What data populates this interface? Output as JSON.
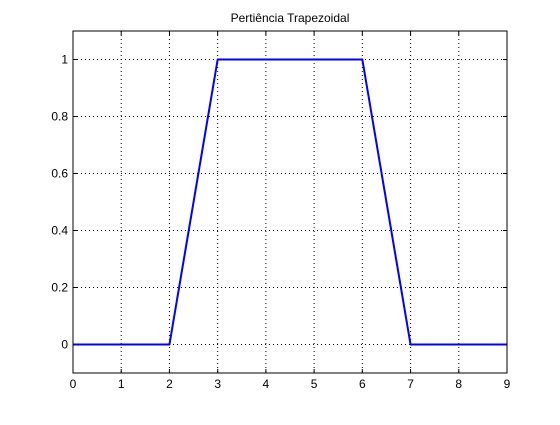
{
  "chart_data": {
    "type": "line",
    "title": "Pertiência Trapezoidal",
    "xlabel": "",
    "ylabel": "",
    "xlim": [
      0,
      9
    ],
    "ylim": [
      -0.1,
      1.1
    ],
    "x_ticks": [
      0,
      1,
      2,
      3,
      4,
      5,
      6,
      7,
      8,
      9
    ],
    "y_ticks": [
      0,
      0.2,
      0.4,
      0.6,
      0.8,
      1
    ],
    "x_tick_labels": [
      "0",
      "1",
      "2",
      "3",
      "4",
      "5",
      "6",
      "7",
      "8",
      "9"
    ],
    "y_tick_labels": [
      "0",
      "0.2",
      "0.4",
      "0.6",
      "0.8",
      "1"
    ],
    "grid": true,
    "series": [
      {
        "color": "#0000ff",
        "x": [
          0,
          2,
          3,
          6,
          7,
          9
        ],
        "y": [
          0,
          0,
          1,
          1,
          0,
          0
        ]
      }
    ]
  }
}
